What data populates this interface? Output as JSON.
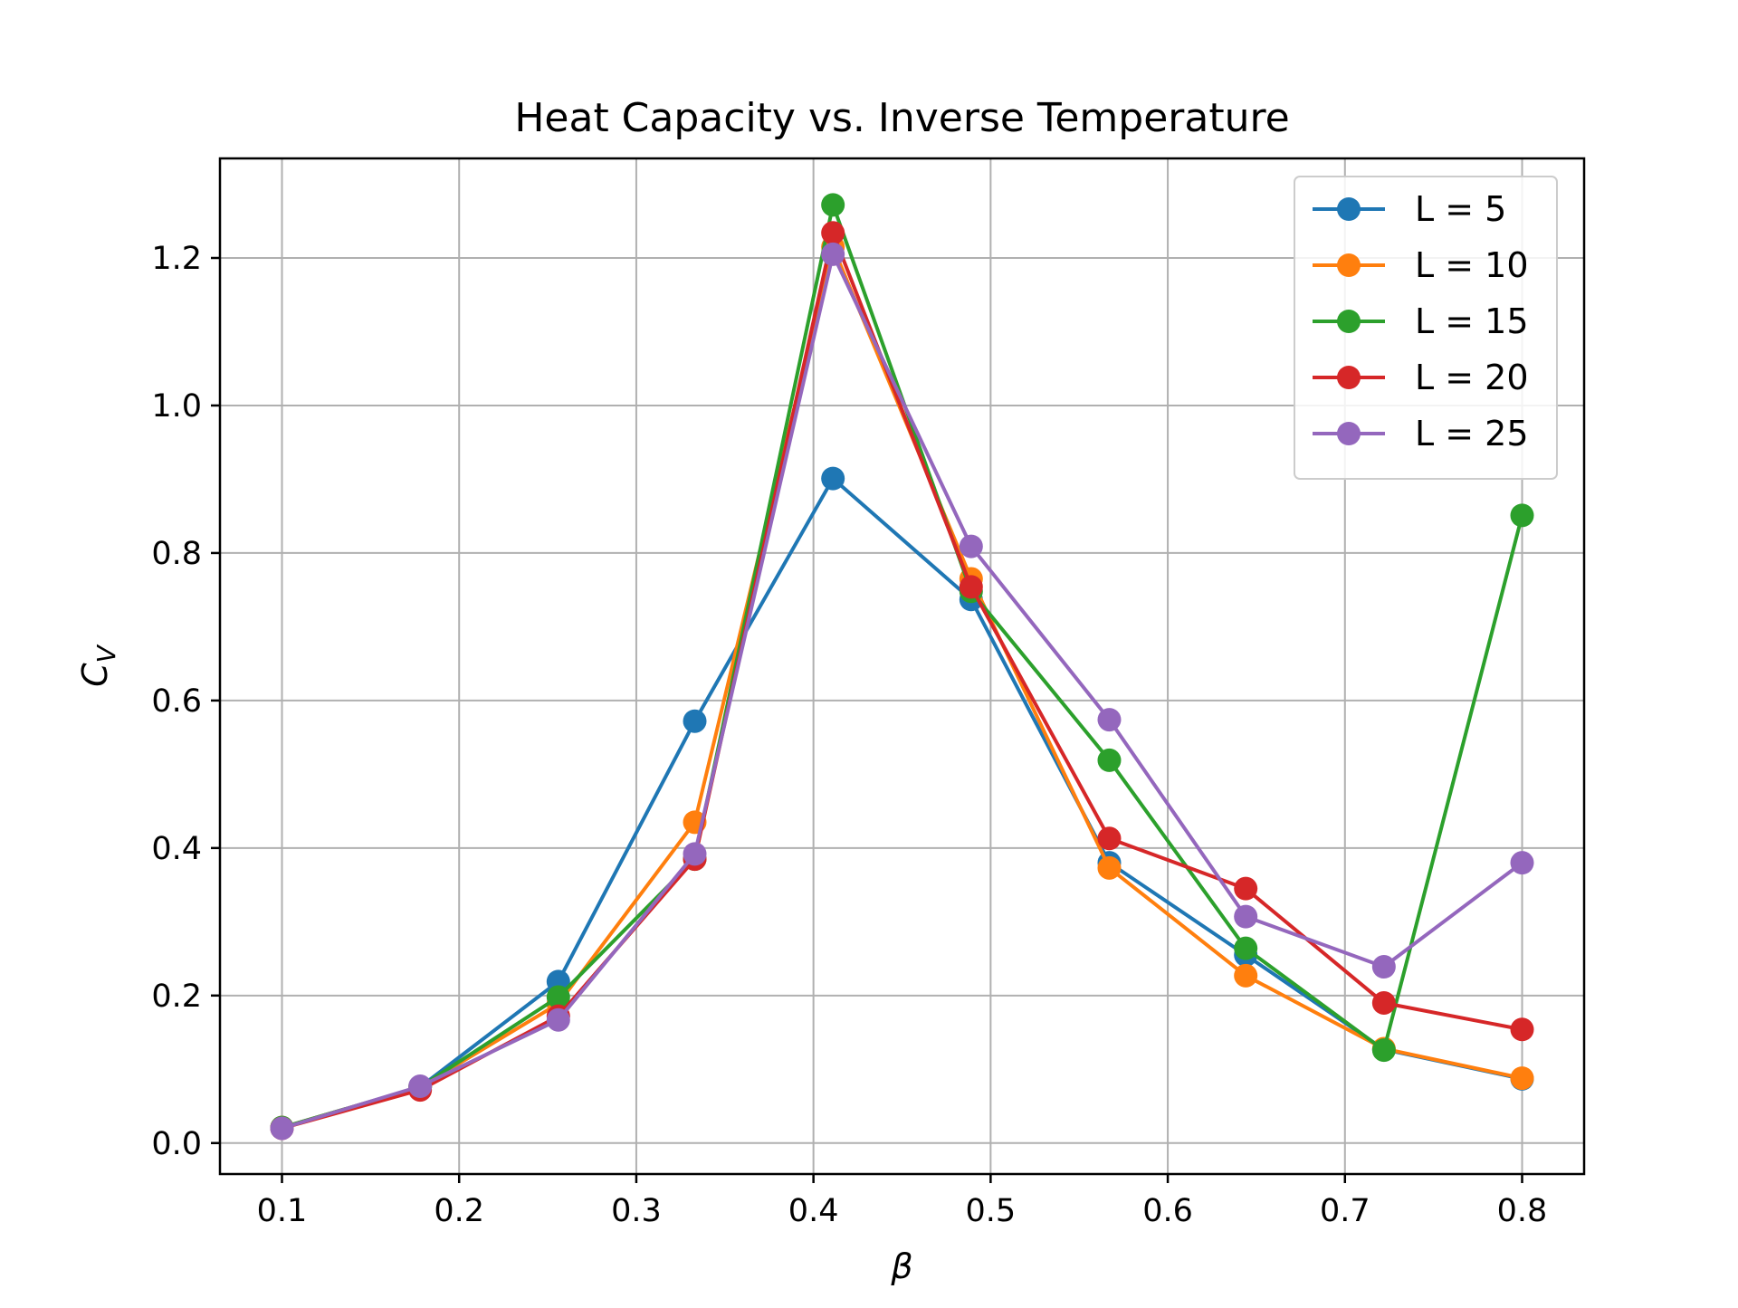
{
  "chart_data": {
    "type": "line",
    "title": "Heat Capacity vs. Inverse Temperature",
    "xlabel": "β",
    "ylabel": "C_V",
    "ylabel_main": "C",
    "ylabel_sub": "V",
    "xlim": [
      0.065,
      0.835
    ],
    "ylim": [
      -0.042,
      1.335
    ],
    "xticks": [
      0.1,
      0.2,
      0.3,
      0.4,
      0.5,
      0.6,
      0.7,
      0.8
    ],
    "xtick_labels": [
      "0.1",
      "0.2",
      "0.3",
      "0.4",
      "0.5",
      "0.6",
      "0.7",
      "0.8"
    ],
    "yticks": [
      0.0,
      0.2,
      0.4,
      0.6,
      0.8,
      1.0,
      1.2
    ],
    "ytick_labels": [
      "0.0",
      "0.2",
      "0.4",
      "0.6",
      "0.8",
      "1.0",
      "1.2"
    ],
    "grid": true,
    "legend_position": "top-right",
    "x": [
      0.1,
      0.178,
      0.256,
      0.333,
      0.411,
      0.489,
      0.567,
      0.644,
      0.722,
      0.8
    ],
    "series": [
      {
        "name": "L = 5",
        "color": "#1f77b4",
        "values": [
          0.021,
          0.076,
          0.219,
          0.572,
          0.901,
          0.737,
          0.38,
          0.255,
          0.127,
          0.087
        ]
      },
      {
        "name": "L = 10",
        "color": "#ff7f0e",
        "values": [
          0.021,
          0.076,
          0.189,
          0.435,
          1.215,
          0.765,
          0.373,
          0.227,
          0.128,
          0.088
        ]
      },
      {
        "name": "L = 15",
        "color": "#2ca02c",
        "values": [
          0.021,
          0.076,
          0.198,
          0.385,
          1.272,
          0.748,
          0.519,
          0.264,
          0.126,
          0.851
        ]
      },
      {
        "name": "L = 20",
        "color": "#d62728",
        "values": [
          0.02,
          0.072,
          0.172,
          0.385,
          1.234,
          0.754,
          0.413,
          0.345,
          0.19,
          0.154
        ]
      },
      {
        "name": "L = 25",
        "color": "#9467bd",
        "values": [
          0.02,
          0.077,
          0.167,
          0.392,
          1.205,
          0.809,
          0.574,
          0.307,
          0.239,
          0.38
        ]
      }
    ]
  }
}
